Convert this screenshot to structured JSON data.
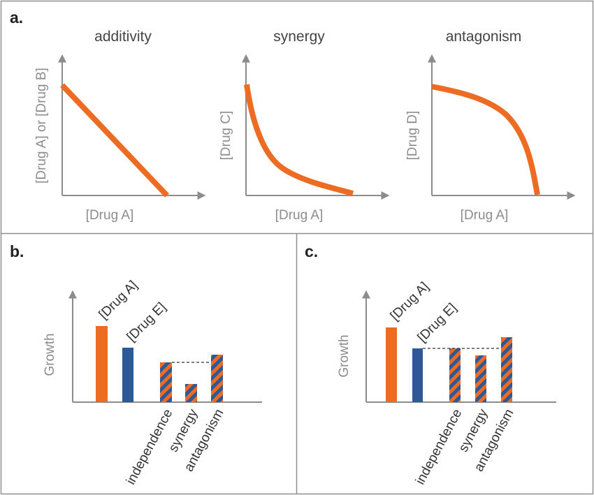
{
  "colors": {
    "orange": "#ec6c23",
    "blue": "#2f5896",
    "axis": "#8c8c8c",
    "border": "#8f8f8f"
  },
  "panel_a": {
    "letter": "a.",
    "plots": [
      {
        "title": "additivity",
        "xlabel": "[Drug A]",
        "ylabel": "[Drug A] or [Drug B]",
        "curve": "linear"
      },
      {
        "title": "synergy",
        "xlabel": "[Drug A]",
        "ylabel": "[Drug C]",
        "curve": "convex"
      },
      {
        "title": "antagonism",
        "xlabel": "[Drug A]",
        "ylabel": "[Drug D]",
        "curve": "concave"
      }
    ]
  },
  "panel_b": {
    "letter": "b.",
    "ylabel": "Growth",
    "single_drug_labels": [
      "[Drug A]",
      "[Drug E]"
    ],
    "combo_labels": [
      "independence",
      "synergy",
      "antagonism"
    ],
    "bars": [
      {
        "label": "[Drug A]",
        "value": 1.0,
        "fill": "orange"
      },
      {
        "label": "[Drug E]",
        "value": 0.71,
        "fill": "blue"
      },
      {
        "label": "independence",
        "value": 0.52,
        "fill": "hatched"
      },
      {
        "label": "synergy",
        "value": 0.24,
        "fill": "hatched"
      },
      {
        "label": "antagonism",
        "value": 0.62,
        "fill": "hatched"
      }
    ],
    "reference_line": "independence"
  },
  "panel_c": {
    "letter": "c.",
    "ylabel": "Growth",
    "single_drug_labels": [
      "[Drug A]",
      "[Drug E]"
    ],
    "combo_labels": [
      "independence",
      "synergy",
      "antagonism"
    ],
    "bars": [
      {
        "label": "[Drug A]",
        "value": 1.0,
        "fill": "orange"
      },
      {
        "label": "[Drug E]",
        "value": 0.72,
        "fill": "blue"
      },
      {
        "label": "independence",
        "value": 0.72,
        "fill": "hatched"
      },
      {
        "label": "synergy",
        "value": 0.63,
        "fill": "hatched"
      },
      {
        "label": "antagonism",
        "value": 0.87,
        "fill": "hatched"
      }
    ],
    "reference_line": "independence"
  }
}
